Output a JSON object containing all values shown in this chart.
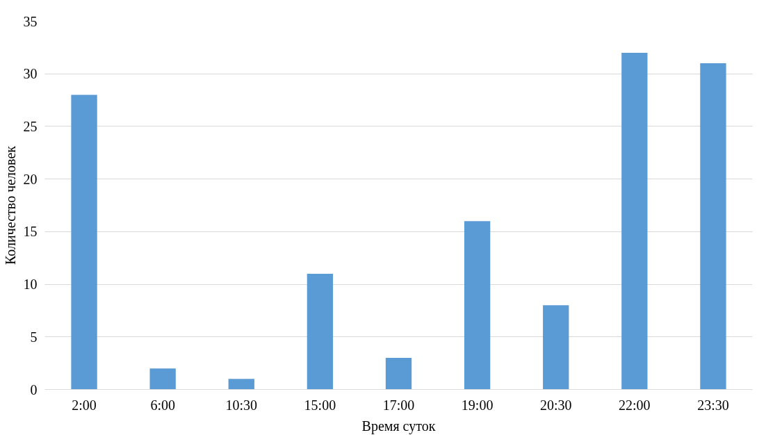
{
  "chart_data": {
    "type": "bar",
    "xlabel": "Время суток",
    "ylabel": "Количество человек",
    "categories": [
      "2:00",
      "6:00",
      "10:30",
      "15:00",
      "17:00",
      "19:00",
      "20:30",
      "22:00",
      "23:30"
    ],
    "values": [
      28,
      2,
      1,
      11,
      3,
      16,
      8,
      32,
      31
    ],
    "color": "#5b9bd5",
    "ylim": [
      0,
      35
    ],
    "yticks": [
      0,
      5,
      10,
      15,
      20,
      25,
      30,
      35
    ],
    "grid": "y"
  }
}
